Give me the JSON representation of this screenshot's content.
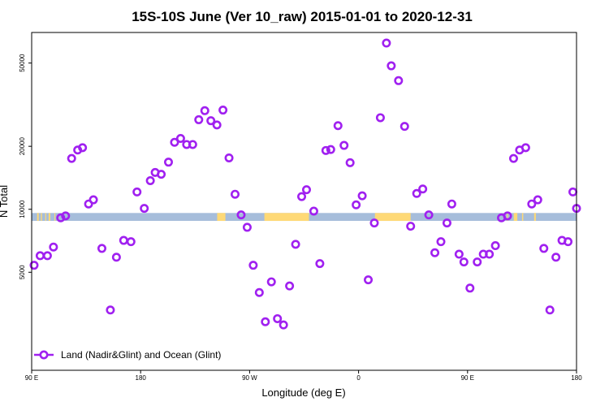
{
  "chart_data": {
    "type": "scatter",
    "title": "15S-10S June (Ver 10_raw)   2015-01-01 to 2020-12-31",
    "xlabel": "Longitude (deg E)",
    "ylabel": "N Total",
    "x_ticks": [
      {
        "value": 90,
        "label": "90 E"
      },
      {
        "value": 180,
        "label": "180"
      },
      {
        "value": 270,
        "label": "90 W"
      },
      {
        "value": 360,
        "label": "0"
      },
      {
        "value": 450,
        "label": "90 E"
      },
      {
        "value": 540,
        "label": "180"
      }
    ],
    "xlim": [
      90,
      540
    ],
    "y_scale": "log",
    "ylim": [
      1700,
      70000
    ],
    "y_ticks": [
      5000,
      10000,
      20000,
      50000
    ],
    "y_tick_labels": [
      "5000",
      "10000",
      "20000",
      "50000"
    ],
    "grid": false,
    "legend_position": "bottom-left",
    "legend": [
      {
        "label": "Land (Nadir&Glint) and Ocean (Glint)",
        "color": "#a020f0",
        "marker": "open-circle-line"
      }
    ],
    "colors": {
      "series": "#a020f0",
      "ocean": "#a6bddb",
      "land": "#fed976",
      "frame": "#000000"
    },
    "surface_band": {
      "y_range": [
        8800,
        9600
      ],
      "land_segments": [
        [
          94.5,
          95.8
        ],
        [
          97.6,
          98.5
        ],
        [
          101.2,
          102.0
        ],
        [
          104.0,
          105.4
        ],
        [
          108.8,
          109.5
        ],
        [
          243.2,
          250.0
        ],
        [
          282.2,
          319.0
        ],
        [
          373.5,
          403.0
        ],
        [
          482.5,
          483.3
        ],
        [
          488.2,
          491.1
        ],
        [
          495.0,
          496.0
        ],
        [
          505.0,
          506.4
        ]
      ]
    },
    "series": [
      {
        "name": "Land (Nadir&Glint) and Ocean (Glint)",
        "x": [
          92,
          97,
          103,
          108,
          114,
          118,
          123,
          128,
          132,
          137,
          141,
          148,
          155,
          160,
          166,
          172,
          177,
          183,
          188,
          192,
          197,
          203,
          208,
          213,
          218,
          223,
          228,
          233,
          238,
          243,
          248,
          253,
          258,
          263,
          268,
          273,
          278,
          283,
          288,
          293,
          298,
          303,
          308,
          313,
          317,
          323,
          328,
          333,
          337,
          343,
          348,
          353,
          358,
          363,
          368,
          373,
          378,
          383,
          387,
          393,
          398,
          403,
          408,
          413,
          418,
          423,
          428,
          433,
          437,
          443,
          447,
          452,
          458,
          463,
          468,
          473,
          478,
          483,
          488,
          493,
          498,
          503,
          508,
          513,
          518,
          523,
          528,
          533,
          537,
          540
        ],
        "y": [
          5400,
          6000,
          6000,
          6600,
          9100,
          9300,
          17500,
          19200,
          19700,
          10600,
          11100,
          6500,
          3300,
          5900,
          7100,
          7000,
          12100,
          10100,
          13700,
          15000,
          14700,
          16800,
          20900,
          21800,
          20400,
          20400,
          26800,
          29600,
          26500,
          25300,
          29800,
          17600,
          11800,
          9400,
          8200,
          5400,
          4000,
          2900,
          4500,
          3000,
          2800,
          4300,
          6800,
          11500,
          12400,
          9800,
          5500,
          19100,
          19300,
          25100,
          20200,
          16700,
          10500,
          11600,
          4600,
          8600,
          27400,
          62300,
          48500,
          41200,
          24900,
          8300,
          11900,
          12500,
          9400,
          6200,
          7000,
          8600,
          10600,
          6100,
          5600,
          4200,
          5600,
          6100,
          6100,
          6700,
          9100,
          9300,
          17500,
          19200,
          19700,
          10600,
          11100,
          6500,
          3300,
          5900,
          7100,
          7000,
          12100,
          10100
        ]
      }
    ]
  }
}
